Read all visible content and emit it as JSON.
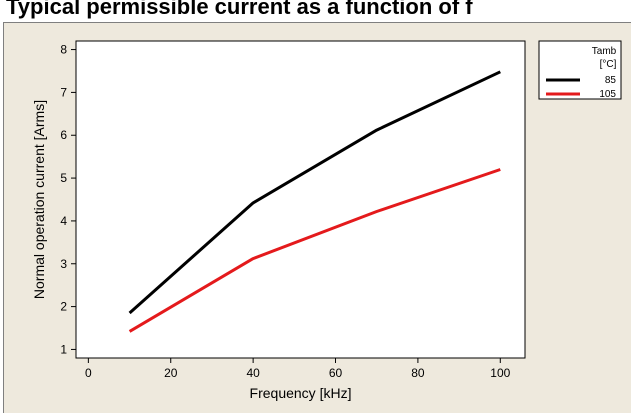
{
  "chart_data": {
    "type": "line",
    "title": "Typical permissible current as a function of f",
    "xlabel": "Frequency [kHz]",
    "ylabel": "Normal operation current [Arms]",
    "xlim": [
      -3,
      106
    ],
    "ylim": [
      0.8,
      8.2
    ],
    "xticks": [
      0,
      20,
      40,
      60,
      80,
      100
    ],
    "yticks": [
      1,
      2,
      3,
      4,
      5,
      6,
      7,
      8
    ],
    "legend": {
      "title_line1": "Tamb",
      "title_line2": "[°C]",
      "position": "right"
    },
    "series": [
      {
        "name": "85",
        "color": "#000000",
        "x": [
          10,
          40,
          70,
          100
        ],
        "y": [
          1.85,
          4.42,
          6.12,
          7.48
        ]
      },
      {
        "name": "105",
        "color": "#e41a1c",
        "x": [
          10,
          40,
          70,
          100
        ],
        "y": [
          1.42,
          3.12,
          4.22,
          5.2
        ]
      }
    ]
  }
}
